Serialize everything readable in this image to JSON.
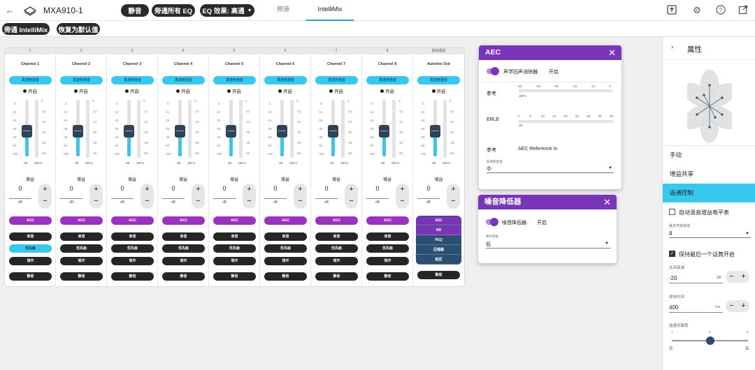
{
  "header": {
    "device_name": "MXA910-1",
    "mute_label": "静音",
    "bypass_eq_label": "旁通所有 EQ",
    "eq_effect_label": "EQ 效果: 高通",
    "tabs": [
      {
        "label": "频道"
      },
      {
        "label": "IntelliMix"
      }
    ]
  },
  "subbar": {
    "bypass_label": "旁通 IntelliMix",
    "reset_label": "恢复为默认值"
  },
  "mixer": {
    "channels": [
      {
        "number": "1",
        "name": "Channel 1",
        "send": "发送到混音",
        "on": "开启",
        "gain_value": "0",
        "unit": "dB",
        "gain_label": "增益",
        "agc": "AGC",
        "solo": "单音",
        "priority": "优先级",
        "priority_on": true,
        "open": "常开",
        "mute": "静音",
        "level": 0.48
      },
      {
        "number": "2",
        "name": "Channel 2",
        "send": "发送到混音",
        "on": "开启",
        "gain_value": "0",
        "unit": "dB",
        "gain_label": "增益",
        "agc": "AGC",
        "solo": "单音",
        "priority": "优先级",
        "priority_on": false,
        "open": "常开",
        "mute": "静音",
        "level": 0.48
      },
      {
        "number": "3",
        "name": "Channel 3",
        "send": "发送到混音",
        "on": "开启",
        "gain_value": "0",
        "unit": "dB",
        "gain_label": "增益",
        "agc": "AGC",
        "solo": "单音",
        "priority": "优先级",
        "priority_on": false,
        "open": "常开",
        "mute": "静音",
        "level": 0.48
      },
      {
        "number": "4",
        "name": "Channel 4",
        "send": "发送到混音",
        "on": "开启",
        "gain_value": "0",
        "unit": "dB",
        "gain_label": "增益",
        "agc": "AGC",
        "solo": "单音",
        "priority": "优先级",
        "priority_on": false,
        "open": "常开",
        "mute": "静音",
        "level": 0.48
      },
      {
        "number": "5",
        "name": "Channel 5",
        "send": "发送到混音",
        "on": "开启",
        "gain_value": "0",
        "unit": "dB",
        "gain_label": "增益",
        "agc": "AGC",
        "solo": "单音",
        "priority": "优先级",
        "priority_on": false,
        "open": "常开",
        "mute": "静音",
        "level": 0.48
      },
      {
        "number": "6",
        "name": "Channel 6",
        "send": "发送到混音",
        "on": "开启",
        "gain_value": "0",
        "unit": "dB",
        "gain_label": "增益",
        "agc": "AGC",
        "solo": "单音",
        "priority": "优先级",
        "priority_on": false,
        "open": "常开",
        "mute": "静音",
        "level": 0.48
      },
      {
        "number": "7",
        "name": "Channel 7",
        "send": "发送到混音",
        "on": "开启",
        "gain_value": "0",
        "unit": "dB",
        "gain_label": "增益",
        "agc": "AGC",
        "solo": "单音",
        "priority": "优先级",
        "priority_on": false,
        "open": "常开",
        "mute": "静音",
        "level": 0.48
      },
      {
        "number": "8",
        "name": "Channel 8",
        "send": "发送到混音",
        "on": "开启",
        "gain_value": "0",
        "unit": "dB",
        "gain_label": "增益",
        "agc": "AGC",
        "solo": "单音",
        "priority": "优先级",
        "priority_on": false,
        "open": "常开",
        "mute": "静音",
        "level": 0.48
      }
    ],
    "output": {
      "number": "自动混音",
      "name": "Automix Out",
      "send": "发送到混音",
      "on": "开启",
      "gain_value": "0",
      "unit": "dB",
      "gain_label": "增益",
      "mute": "静音",
      "blocks": [
        "AEC",
        "NR",
        "PEQ",
        "压缩器",
        "延迟"
      ],
      "level": 0.48
    },
    "scale_left": [
      "0",
      "-12",
      "-24",
      "-36",
      "-48",
      "-60",
      "-INF"
    ],
    "scale_right": [
      "0",
      "-12",
      "-24",
      "-36",
      "-48",
      "-60"
    ],
    "meter_units": [
      "dB",
      "dBFS"
    ]
  },
  "aec_dialog": {
    "title": "AEC",
    "toggle_label": "声学回声消除器:",
    "toggle_state": "开启",
    "ref_label": "参考",
    "ref_scale": [
      "-60",
      "-48",
      "-36",
      "-24",
      "-12",
      "0"
    ],
    "ref_unit": "dBFS",
    "erle_label": "ERLE",
    "erle_scale": [
      "0",
      "5",
      "10",
      "15",
      "20",
      "25",
      "30",
      "35",
      "40"
    ],
    "erle_unit": "dB",
    "ref_source_label": "参考",
    "ref_source_value": "AEC Reference In",
    "nonlinear_label": "非线性处理",
    "nonlinear_value": "中"
  },
  "nr_dialog": {
    "title": "噪音降低器",
    "toggle_label": "噪音降低器:",
    "toggle_state": "开启",
    "level_label": "降声等级",
    "level_value": "低"
  },
  "properties": {
    "title": "属性",
    "menu": [
      "手动",
      "增益共享",
      "选通控制"
    ],
    "auto_gain_label": "自动混音增益电平表",
    "max_open_label": "最多开放通道",
    "max_open_value": "8",
    "keep_last_label": "保持最后一个话筒开启",
    "off_atten_label": "关闭衰减",
    "off_atten_value": "-20",
    "off_atten_unit": "dB",
    "hold_time_label": "保持时间",
    "hold_time_value": "400",
    "hold_time_unit": "ms",
    "sensitivity_label": "选通灵敏度",
    "sensitivity_ticks": [
      "1",
      "5",
      "9"
    ],
    "sensitivity_low": "低",
    "sensitivity_high": "高",
    "sensitivity_value": 5
  }
}
